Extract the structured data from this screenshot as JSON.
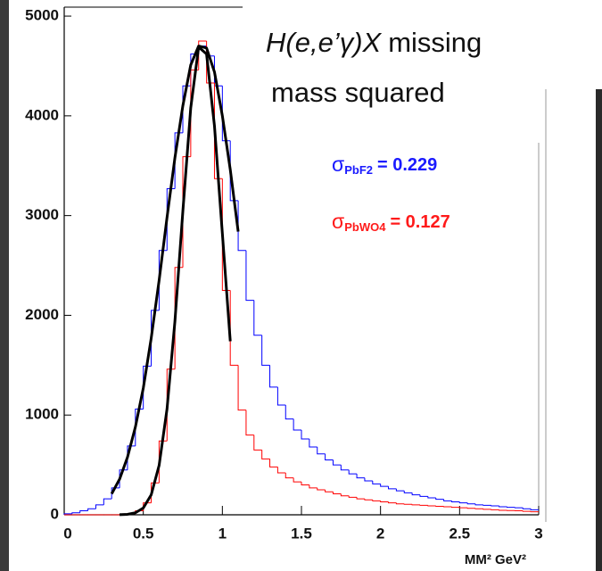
{
  "chart_data": {
    "type": "histogram",
    "title": {
      "italic": "H(e,e’γ)X",
      "line1": "missing",
      "line2": "mass squared"
    },
    "x_label": "MM² GeV²",
    "xlim": [
      0,
      3
    ],
    "ylim": [
      0,
      5090
    ],
    "xticks": [
      0,
      0.5,
      1,
      1.5,
      2,
      2.5,
      3
    ],
    "yticks": [
      0,
      1000,
      2000,
      3000,
      4000,
      5000
    ],
    "bins": [
      0,
      0.05,
      0.1,
      0.15,
      0.2,
      0.25,
      0.3,
      0.35,
      0.4,
      0.45,
      0.5,
      0.55,
      0.6,
      0.65,
      0.7,
      0.75,
      0.8,
      0.85,
      0.9,
      0.95,
      1,
      1.05,
      1.1,
      1.15,
      1.2,
      1.25,
      1.3,
      1.35,
      1.4,
      1.45,
      1.5,
      1.55,
      1.6,
      1.65,
      1.7,
      1.75,
      1.8,
      1.85,
      1.9,
      1.95,
      2,
      2.05,
      2.1,
      2.15,
      2.2,
      2.25,
      2.3,
      2.35,
      2.4,
      2.45,
      2.5,
      2.55,
      2.6,
      2.65,
      2.7,
      2.75,
      2.8,
      2.85,
      2.9,
      2.95,
      3
    ],
    "series": [
      {
        "color": "#0000ff",
        "values": [
          10,
          20,
          40,
          60,
          100,
          160,
          270,
          450,
          690,
          1060,
          1490,
          2050,
          2650,
          3270,
          3830,
          4300,
          4620,
          4700,
          4600,
          4300,
          3750,
          3150,
          2650,
          2150,
          1800,
          1500,
          1280,
          1100,
          960,
          850,
          760,
          680,
          610,
          550,
          500,
          450,
          410,
          370,
          340,
          310,
          285,
          260,
          240,
          220,
          200,
          185,
          170,
          155,
          140,
          130,
          120,
          110,
          100,
          95,
          90,
          80,
          75,
          70,
          60,
          50
        ]
      },
      {
        "color": "#ff0000",
        "values": [
          0,
          0,
          0,
          0,
          0,
          0,
          0,
          2,
          10,
          40,
          120,
          320,
          740,
          1460,
          2480,
          3590,
          4460,
          4750,
          4330,
          3370,
          2250,
          1500,
          1050,
          800,
          650,
          560,
          480,
          420,
          370,
          330,
          300,
          270,
          250,
          230,
          210,
          190,
          175,
          160,
          150,
          140,
          130,
          120,
          110,
          105,
          100,
          95,
          90,
          85,
          80,
          75,
          70,
          65,
          60,
          55,
          50,
          45,
          42,
          40,
          35,
          30
        ]
      }
    ],
    "fits": [
      {
        "color": "#000000",
        "x": [
          0.3,
          0.35,
          0.4,
          0.45,
          0.5,
          0.55,
          0.6,
          0.65,
          0.7,
          0.75,
          0.8,
          0.85,
          0.9,
          0.95,
          1,
          1.05,
          1.1
        ],
        "values": [
          210,
          357,
          577,
          880,
          1270,
          1770,
          2350,
          2980,
          3580,
          4100,
          4510,
          4700,
          4680,
          4440,
          4000,
          3460,
          2840
        ]
      },
      {
        "color": "#000000",
        "x": [
          0.35,
          0.4,
          0.45,
          0.5,
          0.55,
          0.6,
          0.65,
          0.7,
          0.75,
          0.8,
          0.85,
          0.9,
          0.95,
          1,
          1.05
        ],
        "values": [
          1,
          5,
          20,
          68,
          200,
          495,
          1060,
          1940,
          3040,
          4080,
          4690,
          4620,
          3900,
          2820,
          1740
        ]
      }
    ],
    "annotations": [
      {
        "symbol": "σ",
        "subscript": "PbF2",
        "text": "= 0.229",
        "color": "#1a1aff"
      },
      {
        "symbol": "σ",
        "subscript": "PbWO4",
        "text": "= 0.127",
        "color": "#ff1a1a"
      }
    ]
  }
}
